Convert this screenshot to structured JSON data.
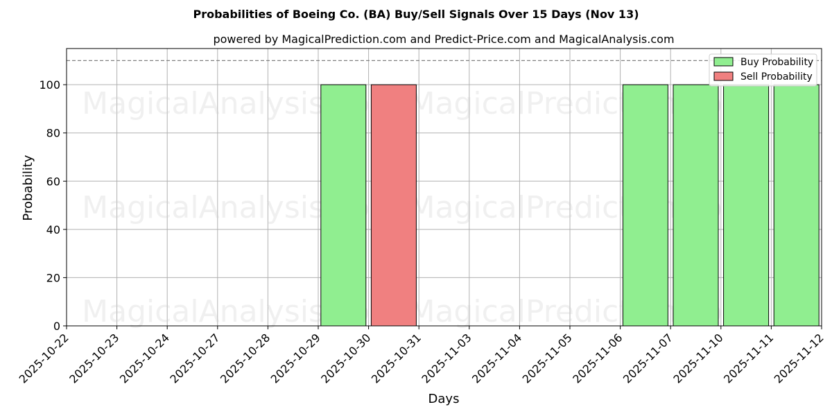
{
  "chart_data": {
    "type": "bar",
    "title": "Probabilities of Boeing Co. (BA) Buy/Sell Signals Over 15 Days (Nov 13)",
    "subtitle": "powered by MagicalPrediction.com and Predict-Price.com and MagicalAnalysis.com",
    "xlabel": "Days",
    "ylabel": "Probability",
    "ylim": [
      0,
      115
    ],
    "yticks": [
      0,
      20,
      40,
      60,
      80,
      100
    ],
    "reference_line": 110,
    "grid": true,
    "legend_position": "top-right",
    "categories": [
      "2025-10-22",
      "2025-10-23",
      "2025-10-24",
      "2025-10-27",
      "2025-10-28",
      "2025-10-29",
      "2025-10-30",
      "2025-10-31",
      "2025-11-03",
      "2025-11-04",
      "2025-11-05",
      "2025-11-06",
      "2025-11-07",
      "2025-11-10",
      "2025-11-11",
      "2025-11-12"
    ],
    "series": [
      {
        "name": "Buy Probability",
        "color": "#90ee90",
        "values": [
          0,
          0,
          0,
          0,
          0,
          100,
          0,
          0,
          0,
          0,
          0,
          100,
          100,
          100,
          100,
          0
        ]
      },
      {
        "name": "Sell Probability",
        "color": "#f08080",
        "values": [
          0,
          0,
          0,
          0,
          0,
          0,
          100,
          0,
          0,
          0,
          0,
          0,
          0,
          0,
          0,
          0
        ]
      }
    ],
    "watermarks": [
      "MagicalAnalysis.com",
      "MagicalPrediction.com"
    ]
  }
}
